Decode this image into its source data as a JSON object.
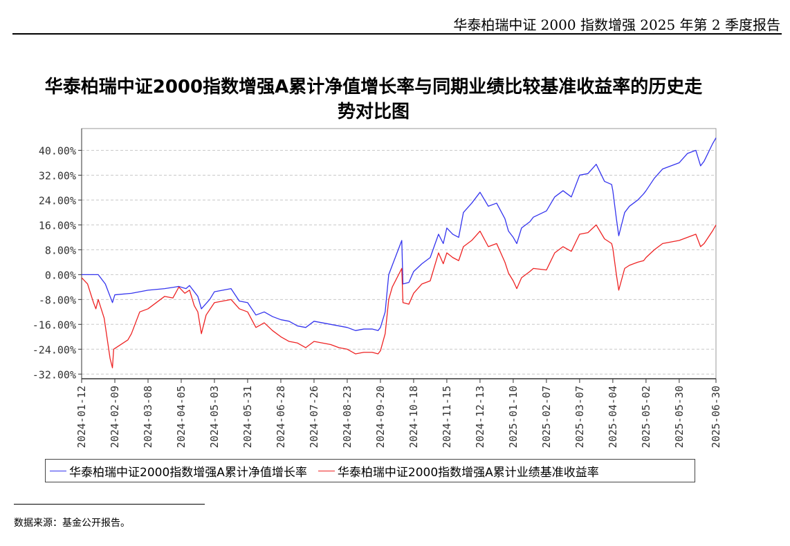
{
  "report_header": "华泰柏瑞中证 2000 指数增强 2025 年第 2 季度报告",
  "footnote": "数据来源：基金公开报告。",
  "chart_data": {
    "type": "line",
    "title": "华泰柏瑞中证2000指数增强A累计净值增长率与同期业绩比较基准收益率的历史走势对比图",
    "title_lines": [
      "华泰柏瑞中证2000指数增强A累计净值增长率与同期业绩比较基准收益率的历史走",
      "势对比图"
    ],
    "xlabel": "",
    "ylabel": "",
    "y_unit": "percent",
    "ylim": [
      -33.5,
      47
    ],
    "y_ticks": [
      40,
      32,
      24,
      16,
      8,
      0,
      -8,
      -16,
      -24,
      -32
    ],
    "y_tick_labels": [
      "40.00%",
      "32.00%",
      "24.00%",
      "16.00%",
      "8.00%",
      "0.00%",
      "-8.00%",
      "-16.00%",
      "-24.00%",
      "-32.00%"
    ],
    "x_range": [
      "2024-01-12",
      "2025-06-30"
    ],
    "x_tick_labels": [
      "2024-01-12",
      "2024-02-09",
      "2024-03-08",
      "2024-04-05",
      "2024-05-03",
      "2024-05-31",
      "2024-06-28",
      "2024-07-26",
      "2024-08-23",
      "2024-09-20",
      "2024-10-18",
      "2024-11-15",
      "2024-12-13",
      "2025-01-10",
      "2025-02-07",
      "2025-03-07",
      "2025-04-04",
      "2025-05-02",
      "2025-05-30",
      "2025-06-30"
    ],
    "grid": true,
    "legend_position": "bottom",
    "series": [
      {
        "name": "华泰柏瑞中证2000指数增强A累计净值增长率",
        "color": "#3333ee",
        "points": [
          [
            "2024-01-12",
            0.0
          ],
          [
            "2024-01-26",
            0.0
          ],
          [
            "2024-02-01",
            -3.0
          ],
          [
            "2024-02-07",
            -9.0
          ],
          [
            "2024-02-09",
            -6.5
          ],
          [
            "2024-02-23",
            -6.0
          ],
          [
            "2024-03-08",
            -5.0
          ],
          [
            "2024-03-22",
            -4.5
          ],
          [
            "2024-04-03",
            -3.8
          ],
          [
            "2024-04-09",
            -4.5
          ],
          [
            "2024-04-12",
            -3.5
          ],
          [
            "2024-04-19",
            -7.0
          ],
          [
            "2024-04-22",
            -11.0
          ],
          [
            "2024-04-29",
            -8.0
          ],
          [
            "2024-05-03",
            -5.5
          ],
          [
            "2024-05-10",
            -5.0
          ],
          [
            "2024-05-17",
            -4.5
          ],
          [
            "2024-05-24",
            -8.5
          ],
          [
            "2024-05-31",
            -9.0
          ],
          [
            "2024-06-07",
            -13.0
          ],
          [
            "2024-06-14",
            -12.0
          ],
          [
            "2024-06-21",
            -13.5
          ],
          [
            "2024-06-28",
            -14.5
          ],
          [
            "2024-07-05",
            -15.0
          ],
          [
            "2024-07-12",
            -16.5
          ],
          [
            "2024-07-19",
            -17.0
          ],
          [
            "2024-07-26",
            -15.0
          ],
          [
            "2024-08-02",
            -15.5
          ],
          [
            "2024-08-09",
            -16.0
          ],
          [
            "2024-08-16",
            -16.5
          ],
          [
            "2024-08-23",
            -17.0
          ],
          [
            "2024-08-30",
            -18.0
          ],
          [
            "2024-09-06",
            -17.5
          ],
          [
            "2024-09-13",
            -17.5
          ],
          [
            "2024-09-18",
            -18.0
          ],
          [
            "2024-09-20",
            -17.0
          ],
          [
            "2024-09-24",
            -12.0
          ],
          [
            "2024-09-27",
            0.0
          ],
          [
            "2024-09-30",
            3.0
          ],
          [
            "2024-10-08",
            11.0
          ],
          [
            "2024-10-09",
            -3.0
          ],
          [
            "2024-10-14",
            -2.5
          ],
          [
            "2024-10-18",
            1.0
          ],
          [
            "2024-10-25",
            3.5
          ],
          [
            "2024-11-01",
            5.5
          ],
          [
            "2024-11-08",
            13.0
          ],
          [
            "2024-11-12",
            10.0
          ],
          [
            "2024-11-15",
            15.0
          ],
          [
            "2024-11-20",
            13.0
          ],
          [
            "2024-11-25",
            12.0
          ],
          [
            "2024-11-29",
            20.0
          ],
          [
            "2024-12-06",
            23.0
          ],
          [
            "2024-12-13",
            26.5
          ],
          [
            "2024-12-20",
            22.0
          ],
          [
            "2024-12-27",
            23.0
          ],
          [
            "2025-01-03",
            18.0
          ],
          [
            "2025-01-06",
            14.0
          ],
          [
            "2025-01-10",
            12.0
          ],
          [
            "2025-01-13",
            10.0
          ],
          [
            "2025-01-17",
            15.0
          ],
          [
            "2025-01-24",
            17.0
          ],
          [
            "2025-01-27",
            18.5
          ],
          [
            "2025-02-07",
            20.5
          ],
          [
            "2025-02-14",
            25.0
          ],
          [
            "2025-02-21",
            27.0
          ],
          [
            "2025-02-28",
            25.0
          ],
          [
            "2025-03-07",
            32.0
          ],
          [
            "2025-03-14",
            32.5
          ],
          [
            "2025-03-21",
            35.5
          ],
          [
            "2025-03-28",
            30.0
          ],
          [
            "2025-04-03",
            29.0
          ],
          [
            "2025-04-04",
            27.0
          ],
          [
            "2025-04-07",
            18.0
          ],
          [
            "2025-04-09",
            12.5
          ],
          [
            "2025-04-14",
            20.0
          ],
          [
            "2025-04-18",
            22.0
          ],
          [
            "2025-04-25",
            24.0
          ],
          [
            "2025-04-30",
            26.0
          ],
          [
            "2025-05-02",
            27.0
          ],
          [
            "2025-05-09",
            31.0
          ],
          [
            "2025-05-16",
            34.0
          ],
          [
            "2025-05-23",
            35.0
          ],
          [
            "2025-05-30",
            36.0
          ],
          [
            "2025-06-06",
            39.0
          ],
          [
            "2025-06-13",
            40.0
          ],
          [
            "2025-06-17",
            35.0
          ],
          [
            "2025-06-20",
            36.5
          ],
          [
            "2025-06-27",
            42.0
          ],
          [
            "2025-06-30",
            44.0
          ]
        ]
      },
      {
        "name": "华泰柏瑞中证2000指数增强A累计业绩基准收益率",
        "color": "#ee2222",
        "points": [
          [
            "2024-01-12",
            -1.0
          ],
          [
            "2024-01-17",
            -3.0
          ],
          [
            "2024-01-22",
            -9.0
          ],
          [
            "2024-01-24",
            -11.0
          ],
          [
            "2024-01-26",
            -8.0
          ],
          [
            "2024-01-31",
            -14.0
          ],
          [
            "2024-02-05",
            -27.0
          ],
          [
            "2024-02-07",
            -30.0
          ],
          [
            "2024-02-08",
            -24.0
          ],
          [
            "2024-02-20",
            -21.0
          ],
          [
            "2024-02-23",
            -19.0
          ],
          [
            "2024-03-01",
            -12.0
          ],
          [
            "2024-03-08",
            -11.0
          ],
          [
            "2024-03-15",
            -9.0
          ],
          [
            "2024-03-22",
            -7.0
          ],
          [
            "2024-03-29",
            -7.5
          ],
          [
            "2024-04-03",
            -4.0
          ],
          [
            "2024-04-08",
            -6.0
          ],
          [
            "2024-04-12",
            -5.0
          ],
          [
            "2024-04-16",
            -10.0
          ],
          [
            "2024-04-19",
            -12.0
          ],
          [
            "2024-04-22",
            -19.0
          ],
          [
            "2024-04-26",
            -13.0
          ],
          [
            "2024-05-03",
            -9.0
          ],
          [
            "2024-05-10",
            -8.5
          ],
          [
            "2024-05-17",
            -8.0
          ],
          [
            "2024-05-24",
            -11.0
          ],
          [
            "2024-05-31",
            -12.0
          ],
          [
            "2024-06-07",
            -17.0
          ],
          [
            "2024-06-14",
            -15.5
          ],
          [
            "2024-06-21",
            -18.0
          ],
          [
            "2024-06-28",
            -20.0
          ],
          [
            "2024-07-05",
            -21.5
          ],
          [
            "2024-07-12",
            -22.0
          ],
          [
            "2024-07-19",
            -23.5
          ],
          [
            "2024-07-26",
            -21.5
          ],
          [
            "2024-08-02",
            -22.0
          ],
          [
            "2024-08-09",
            -22.5
          ],
          [
            "2024-08-16",
            -23.5
          ],
          [
            "2024-08-23",
            -24.0
          ],
          [
            "2024-08-30",
            -25.5
          ],
          [
            "2024-09-06",
            -25.0
          ],
          [
            "2024-09-13",
            -25.0
          ],
          [
            "2024-09-18",
            -25.5
          ],
          [
            "2024-09-20",
            -24.5
          ],
          [
            "2024-09-24",
            -19.0
          ],
          [
            "2024-09-27",
            -8.0
          ],
          [
            "2024-09-30",
            -4.0
          ],
          [
            "2024-10-08",
            2.0
          ],
          [
            "2024-10-09",
            -9.0
          ],
          [
            "2024-10-14",
            -9.5
          ],
          [
            "2024-10-18",
            -6.0
          ],
          [
            "2024-10-25",
            -3.0
          ],
          [
            "2024-11-01",
            -2.0
          ],
          [
            "2024-11-08",
            7.0
          ],
          [
            "2024-11-12",
            3.5
          ],
          [
            "2024-11-15",
            7.0
          ],
          [
            "2024-11-20",
            5.5
          ],
          [
            "2024-11-25",
            4.5
          ],
          [
            "2024-11-29",
            9.0
          ],
          [
            "2024-12-06",
            11.0
          ],
          [
            "2024-12-13",
            14.0
          ],
          [
            "2024-12-20",
            9.0
          ],
          [
            "2024-12-27",
            10.0
          ],
          [
            "2025-01-03",
            4.0
          ],
          [
            "2025-01-06",
            0.5
          ],
          [
            "2025-01-10",
            -2.0
          ],
          [
            "2025-01-13",
            -4.5
          ],
          [
            "2025-01-17",
            -1.0
          ],
          [
            "2025-01-24",
            1.0
          ],
          [
            "2025-01-27",
            2.0
          ],
          [
            "2025-02-07",
            1.5
          ],
          [
            "2025-02-14",
            7.0
          ],
          [
            "2025-02-21",
            9.0
          ],
          [
            "2025-02-28",
            7.5
          ],
          [
            "2025-03-07",
            13.0
          ],
          [
            "2025-03-14",
            13.5
          ],
          [
            "2025-03-21",
            16.0
          ],
          [
            "2025-03-28",
            11.5
          ],
          [
            "2025-04-03",
            10.0
          ],
          [
            "2025-04-04",
            8.5
          ],
          [
            "2025-04-07",
            0.0
          ],
          [
            "2025-04-09",
            -5.0
          ],
          [
            "2025-04-14",
            2.0
          ],
          [
            "2025-04-18",
            3.0
          ],
          [
            "2025-04-25",
            4.0
          ],
          [
            "2025-04-30",
            4.5
          ],
          [
            "2025-05-02",
            5.5
          ],
          [
            "2025-05-09",
            8.0
          ],
          [
            "2025-05-16",
            10.0
          ],
          [
            "2025-05-23",
            10.5
          ],
          [
            "2025-05-30",
            11.0
          ],
          [
            "2025-06-06",
            12.0
          ],
          [
            "2025-06-13",
            13.0
          ],
          [
            "2025-06-17",
            9.0
          ],
          [
            "2025-06-20",
            10.0
          ],
          [
            "2025-06-27",
            14.0
          ],
          [
            "2025-06-30",
            16.0
          ]
        ]
      }
    ]
  }
}
